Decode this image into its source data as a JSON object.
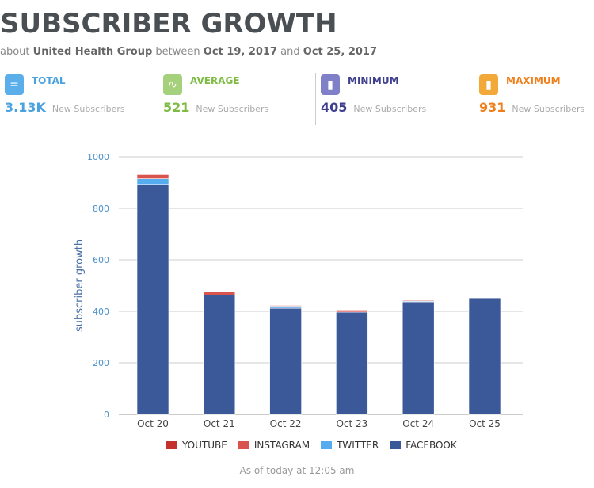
{
  "header": {
    "title": "SUBSCRIBER GROWTH",
    "about": "about",
    "entity": "United Health Group",
    "between": "between",
    "start": "Oct 19, 2017",
    "and": "and",
    "end": "Oct 25, 2017"
  },
  "stats": [
    {
      "label": "TOTAL",
      "value": "3.13K",
      "unit": "New Subscribers",
      "color": "#4aa3df",
      "icon": "equals-icon"
    },
    {
      "label": "AVERAGE",
      "value": "521",
      "unit": "New Subscribers",
      "color": "#7dbb42",
      "icon": "sine-wave-icon"
    },
    {
      "label": "MINIMUM",
      "value": "405",
      "unit": "New Subscribers",
      "color": "#3f3f8f",
      "icon": "bar-chart-icon"
    },
    {
      "label": "MAXIMUM",
      "value": "931",
      "unit": "New Subscribers",
      "color": "#ef7f1a",
      "icon": "bar-chart-icon"
    }
  ],
  "chart_data": {
    "type": "bar",
    "stacked": true,
    "categories": [
      "Oct 20",
      "Oct 21",
      "Oct 22",
      "Oct 23",
      "Oct 24",
      "Oct 25"
    ],
    "series": [
      {
        "name": "FACEBOOK",
        "color": "#3b5998",
        "values": [
          893,
          463,
          412,
          397,
          437,
          452
        ]
      },
      {
        "name": "TWITTER",
        "color": "#55acee",
        "values": [
          22,
          0,
          8,
          0,
          3,
          0
        ]
      },
      {
        "name": "INSTAGRAM",
        "color": "#d9534f",
        "values": [
          16,
          14,
          3,
          8,
          3,
          0
        ]
      },
      {
        "name": "YOUTUBE",
        "color": "#c4302b",
        "values": [
          0,
          0,
          0,
          0,
          0,
          0
        ]
      }
    ],
    "legend_order": [
      "YOUTUBE",
      "INSTAGRAM",
      "TWITTER",
      "FACEBOOK"
    ],
    "ylabel": "subscriber growth",
    "ylim": [
      0,
      1000
    ],
    "yticks": [
      0,
      200,
      400,
      600,
      800,
      1000
    ],
    "grid": true,
    "legend_position": "bottom"
  },
  "footer": "As of today at 12:05 am"
}
